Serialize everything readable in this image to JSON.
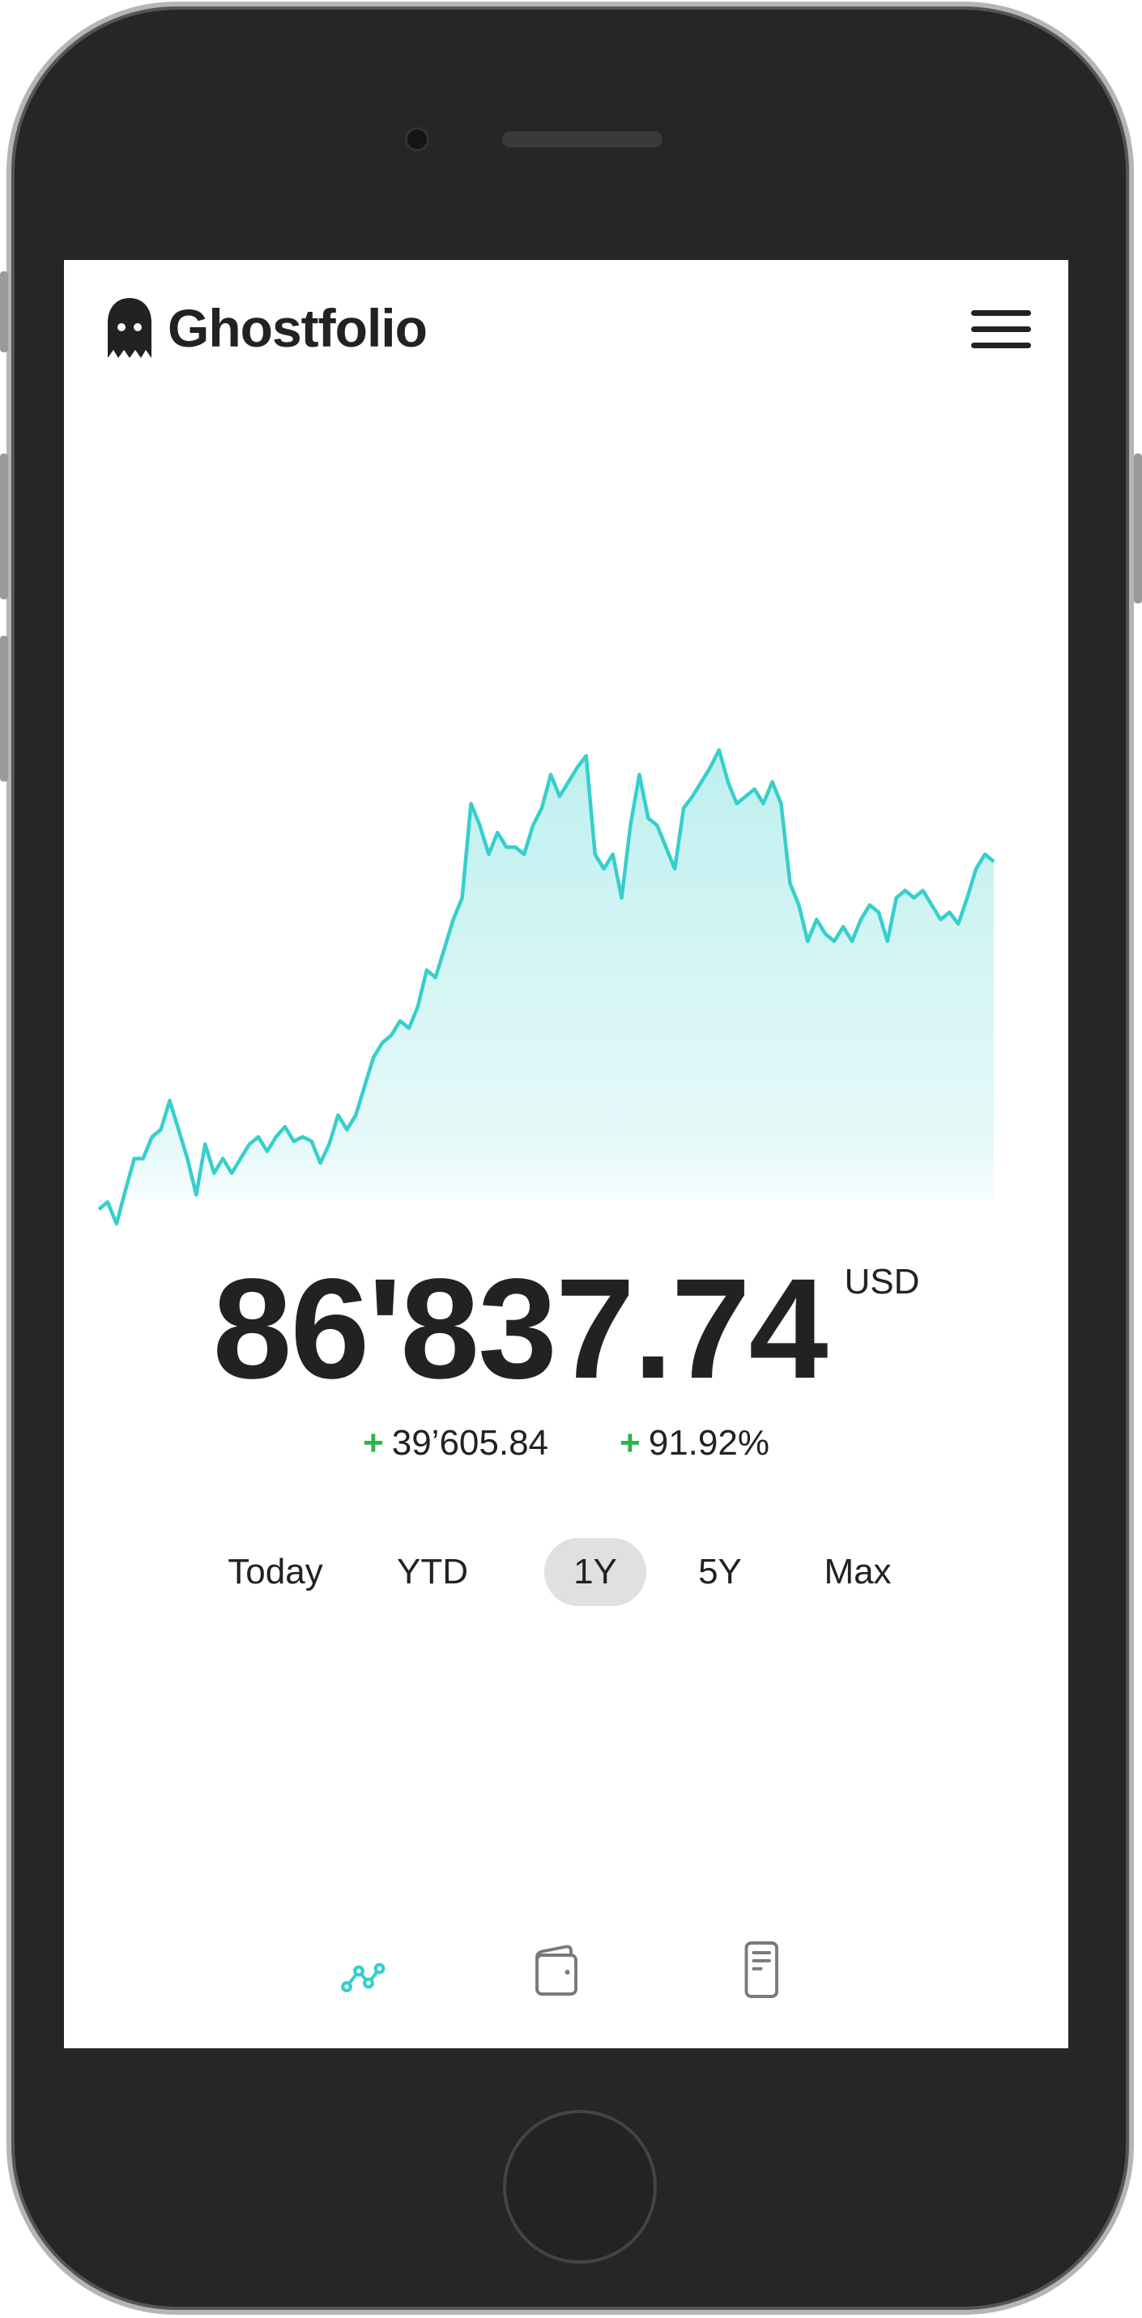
{
  "app": {
    "title": "Ghostfolio"
  },
  "header": {
    "logo_text": "Ghostfolio",
    "menu_icon": "hamburger-menu-icon"
  },
  "summary": {
    "value": "86'837.74",
    "currency": "USD",
    "change_absolute": "39’605.84",
    "change_percent": "91.92%",
    "change_sign": "+",
    "positive_color": "#2eb347"
  },
  "ranges": {
    "items": [
      {
        "label": "Today",
        "active": false
      },
      {
        "label": "YTD",
        "active": false
      },
      {
        "label": "1Y",
        "active": true
      },
      {
        "label": "5Y",
        "active": false
      },
      {
        "label": "Max",
        "active": false
      }
    ]
  },
  "bottom_nav": {
    "items": [
      {
        "icon": "chart-line-icon",
        "active": true
      },
      {
        "icon": "wallet-icon",
        "active": false
      },
      {
        "icon": "document-icon",
        "active": false
      }
    ],
    "active_color": "#36cfcc",
    "inactive_color": "#7a7a7a"
  },
  "chart_data": {
    "type": "area",
    "line_color": "#36cfcc",
    "grid": false,
    "axes_visible": false,
    "values": [
      47232,
      48057,
      45582,
      49377,
      53007,
      53007,
      55482,
      56307,
      59607,
      56307,
      53007,
      48882,
      54657,
      51357,
      53007,
      51357,
      53007,
      54657,
      55482,
      53832,
      55482,
      56637,
      54987,
      55482,
      54987,
      52512,
      54657,
      57957,
      56307,
      57957,
      61257,
      64557,
      66207,
      67032,
      68682,
      67857,
      70332,
      74457,
      73632,
      76932,
      80232,
      82707,
      93432,
      90957,
      87657,
      90132,
      88482,
      88482,
      87657,
      90957,
      92937,
      96732,
      94257,
      95907,
      97557,
      98877,
      87657,
      86007,
      87657,
      82707,
      90957,
      96732,
      91782,
      90957,
      88482,
      86007,
      92937,
      94257,
      95907,
      97557,
      99537,
      95907,
      93432,
      94257,
      95082,
      93432,
      95907,
      93432,
      84357,
      81882,
      77757,
      80232,
      78582,
      77757,
      79407,
      77757,
      80232,
      81882,
      81057,
      77757,
      82707,
      83532,
      82707,
      83532,
      81882,
      80232,
      81057,
      79737,
      82707,
      86007,
      87657,
      86838
    ]
  }
}
